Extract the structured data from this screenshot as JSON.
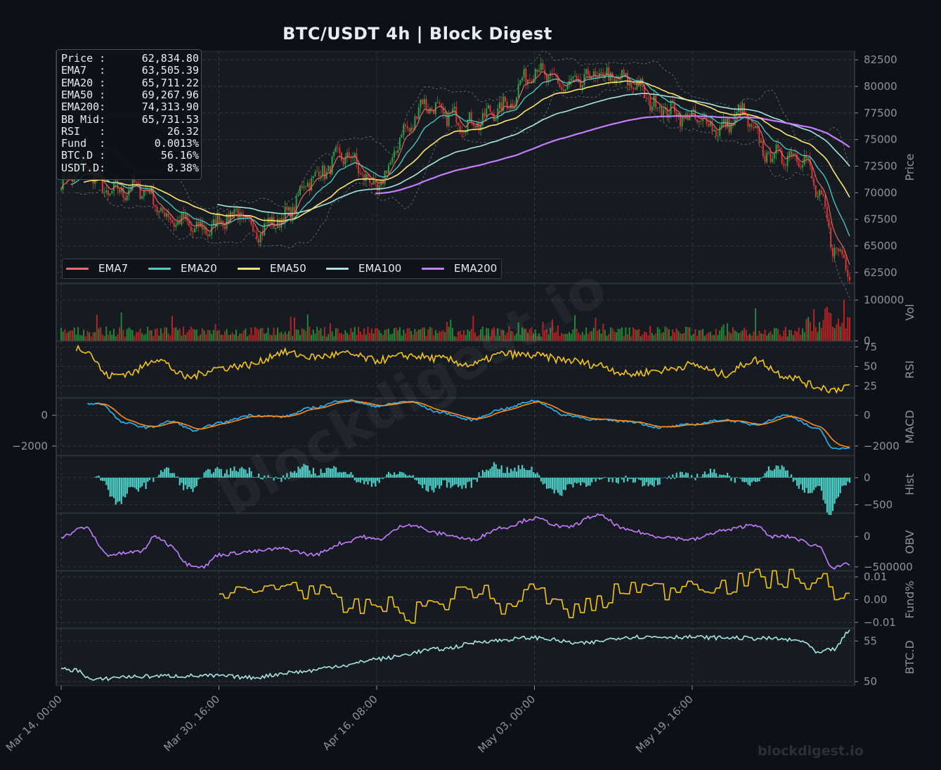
{
  "title": "BTC/USDT  4h  |  Block Digest",
  "watermark": "blockdigest.io",
  "info_box": [
    {
      "label": "Price :",
      "value": "62,834.80"
    },
    {
      "label": "EMA7  :",
      "value": "63,505.39"
    },
    {
      "label": "EMA20 :",
      "value": "65,711.22"
    },
    {
      "label": "EMA50 :",
      "value": "69,267.96"
    },
    {
      "label": "EMA200:",
      "value": "74,313.90"
    },
    {
      "label": "BB Mid:",
      "value": "65,731.53"
    },
    {
      "label": "RSI   :",
      "value": "26.32"
    },
    {
      "label": "Fund  :",
      "value": "0.0013%"
    },
    {
      "label": "BTC.D :",
      "value": "56.16%"
    },
    {
      "label": "USDT.D:",
      "value": "8.38%"
    }
  ],
  "legend": [
    {
      "name": "EMA7",
      "color": "#f26b6b"
    },
    {
      "name": "EMA20",
      "color": "#4ecdc4"
    },
    {
      "name": "EMA50",
      "color": "#ffe66d"
    },
    {
      "name": "EMA100",
      "color": "#a8e6e3"
    },
    {
      "name": "EMA200",
      "color": "#c77dff"
    }
  ],
  "colors": {
    "background": "#0d1117",
    "panel": "#161b22",
    "grid": "#30363d",
    "text": "#8b949e",
    "up": "#2ea043",
    "down": "#da3633",
    "rsi": "#f5c518",
    "macd": "#29b6f6",
    "signal": "#ff8c1a",
    "hist": "#4ecdc4",
    "obv": "#c77dff",
    "funding": "#f5c518",
    "btcd": "#a8e6e3",
    "bb": "#6e7681"
  },
  "chart_data": {
    "type": "line",
    "timeframe": "4h",
    "x_ticks": [
      "Mar 14, 00:00",
      "Mar 30, 16:00",
      "Apr 16, 08:00",
      "May 03, 00:00",
      "May 19, 16:00"
    ],
    "price_anchors": {
      "x": [
        0,
        3,
        6,
        10,
        14,
        18,
        22,
        25,
        28,
        32,
        36,
        40,
        44,
        46,
        48,
        52,
        56,
        60,
        64,
        68,
        72,
        76,
        80,
        84,
        86,
        90,
        94,
        96,
        98,
        100
      ],
      "y": [
        71000,
        72500,
        70000,
        70500,
        67500,
        66500,
        68000,
        66500,
        67500,
        71500,
        73500,
        70500,
        76000,
        78500,
        77500,
        76500,
        78000,
        81500,
        80000,
        81000,
        80500,
        78000,
        77000,
        76000,
        77500,
        73500,
        73500,
        70000,
        65000,
        62835
      ]
    },
    "panels": [
      {
        "name": "Price",
        "ylabel": "Price",
        "yticks": [
          62500,
          65000,
          67500,
          70000,
          72500,
          75000,
          77500,
          80000,
          82500
        ],
        "ylim": [
          61500,
          83300
        ]
      },
      {
        "name": "Vol",
        "ylabel": "Vol",
        "yticks": [
          0,
          100000
        ],
        "ylim": [
          0,
          140000
        ]
      },
      {
        "name": "RSI",
        "ylabel": "RSI",
        "yticks": [
          25,
          50,
          75
        ],
        "ylim": [
          10,
          82
        ]
      },
      {
        "name": "MACD",
        "ylabel": "MACD",
        "yticks": [
          -2000,
          0
        ],
        "ylim": [
          -2600,
          1100
        ],
        "left_ticks": [
          -2000,
          0
        ]
      },
      {
        "name": "Hist",
        "ylabel": "Hist",
        "yticks": [
          -500,
          0
        ],
        "ylim": [
          -650,
          400
        ]
      },
      {
        "name": "OBV",
        "ylabel": "OBV",
        "yticks": [
          -500000,
          0
        ],
        "ylim": [
          -560000,
          380000
        ]
      },
      {
        "name": "Fund%",
        "ylabel": "Fund%",
        "yticks": [
          -0.01,
          0.0,
          0.01
        ],
        "ylim": [
          -0.0125,
          0.0125
        ]
      },
      {
        "name": "BTC.D",
        "ylabel": "BTC.D",
        "yticks": [
          50,
          55
        ],
        "ylim": [
          49.5,
          56.5
        ]
      }
    ],
    "series": [
      {
        "name": "EMA7",
        "last": 63505.39
      },
      {
        "name": "EMA20",
        "last": 65711.22
      },
      {
        "name": "EMA50",
        "last": 69267.96
      },
      {
        "name": "EMA100"
      },
      {
        "name": "EMA200",
        "last": 74313.9
      }
    ],
    "rsi_anchors": {
      "x": [
        0,
        3,
        6,
        9,
        12,
        16,
        20,
        24,
        28,
        32,
        36,
        40,
        44,
        48,
        52,
        56,
        60,
        64,
        68,
        72,
        76,
        80,
        84,
        88,
        92,
        96,
        98,
        100
      ],
      "y": [
        80,
        72,
        38,
        42,
        60,
        36,
        48,
        52,
        68,
        62,
        66,
        58,
        64,
        60,
        52,
        66,
        64,
        58,
        52,
        40,
        45,
        52,
        40,
        58,
        38,
        24,
        20,
        26
      ]
    },
    "macd_anchors": {
      "x": [
        5,
        8,
        11,
        14,
        17,
        20,
        24,
        28,
        32,
        36,
        40,
        44,
        48,
        52,
        56,
        60,
        64,
        68,
        72,
        76,
        80,
        84,
        88,
        92,
        96,
        98,
        100
      ],
      "y": [
        750,
        -500,
        -800,
        -400,
        -1000,
        -500,
        0,
        -100,
        500,
        1000,
        600,
        900,
        200,
        -300,
        400,
        950,
        0,
        -300,
        -400,
        -800,
        -600,
        -300,
        -600,
        0,
        -900,
        -2200,
        -2100
      ]
    },
    "obv_anchors": {
      "x": [
        0,
        3,
        6,
        10,
        12,
        14,
        16,
        18,
        20,
        24,
        28,
        32,
        36,
        38,
        40,
        44,
        48,
        52,
        56,
        60,
        64,
        68,
        72,
        76,
        80,
        84,
        88,
        90,
        92,
        96,
        98,
        100
      ],
      "y": [
        0,
        150000,
        -300000,
        -250000,
        0,
        -150000,
        -450000,
        -500000,
        -300000,
        -250000,
        -200000,
        -300000,
        -100000,
        0,
        -50000,
        200000,
        50000,
        -50000,
        150000,
        300000,
        150000,
        350000,
        100000,
        0,
        -50000,
        100000,
        200000,
        0,
        0,
        -150000,
        -520000,
        -450000
      ]
    },
    "fund_anchors": {
      "x": [
        20,
        24,
        28,
        32,
        36,
        40,
        44,
        48,
        52,
        56,
        60,
        64,
        68,
        72,
        76,
        80,
        84,
        88,
        92,
        96,
        100
      ],
      "y": [
        0.001,
        0.003,
        0.007,
        0.004,
        -0.004,
        -0.002,
        -0.006,
        -0.001,
        0.005,
        -0.003,
        0.004,
        -0.005,
        -0.002,
        0.006,
        0.004,
        0.008,
        0.006,
        0.009,
        0.009,
        0.008,
        0.001
      ]
    },
    "btcd_anchors": {
      "x": [
        0,
        2,
        4,
        8,
        14,
        20,
        24,
        30,
        36,
        40,
        48,
        54,
        60,
        66,
        72,
        78,
        84,
        90,
        94,
        96,
        98,
        100
      ],
      "y": [
        51.5,
        51.4,
        50.2,
        50.6,
        50.7,
        50.7,
        50.5,
        51.2,
        52.0,
        52.8,
        54.0,
        55.0,
        55.4,
        54.7,
        55.5,
        55.5,
        55.4,
        55.3,
        55.0,
        53.5,
        54.0,
        56.16
      ]
    }
  }
}
